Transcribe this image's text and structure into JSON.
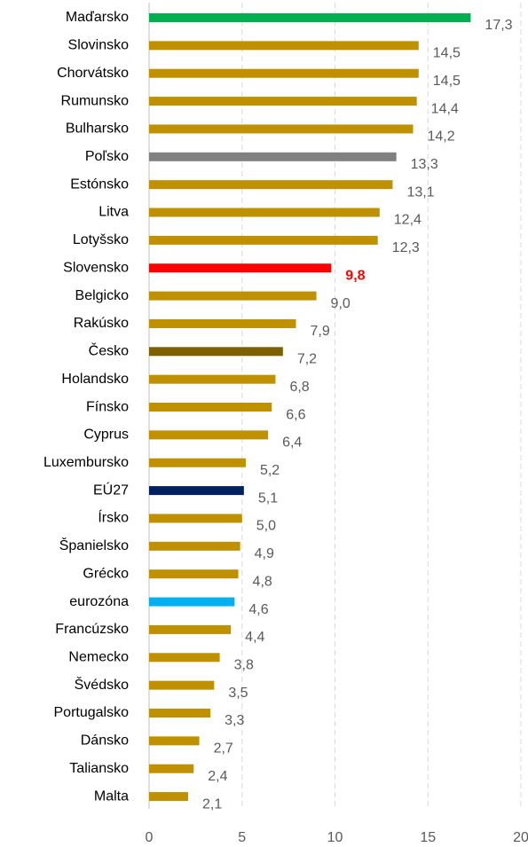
{
  "chart_data": {
    "type": "barh",
    "categories": [
      "Maďarsko",
      "Slovinsko",
      "Chorvátsko",
      "Rumunsko",
      "Bulharsko",
      "Poľsko",
      "Estónsko",
      "Litva",
      "Lotyšsko",
      "Slovensko",
      "Belgicko",
      "Rakúsko",
      "Česko",
      "Holandsko",
      "Fínsko",
      "Cyprus",
      "Luxembursko",
      "EÚ27",
      "Írsko",
      "Španielsko",
      "Grécko",
      "eurozóna",
      "Francúzsko",
      "Nemecko",
      "Švédsko",
      "Portugalsko",
      "Dánsko",
      "Taliansko",
      "Malta"
    ],
    "values": [
      17.3,
      14.5,
      14.5,
      14.4,
      14.2,
      13.3,
      13.1,
      12.4,
      12.3,
      9.8,
      9.0,
      7.9,
      7.2,
      6.8,
      6.6,
      6.4,
      5.2,
      5.1,
      5.0,
      4.9,
      4.8,
      4.6,
      4.4,
      3.8,
      3.5,
      3.3,
      2.7,
      2.4,
      2.1
    ],
    "value_labels": [
      "17,3",
      "14,5",
      "14,5",
      "14,4",
      "14,2",
      "13,3",
      "13,1",
      "12,4",
      "12,3",
      "9,8",
      "9,0",
      "7,9",
      "7,2",
      "6,8",
      "6,6",
      "6,4",
      "5,2",
      "5,1",
      "5,0",
      "4,9",
      "4,8",
      "4,6",
      "4,4",
      "3,8",
      "3,5",
      "3,3",
      "2,7",
      "2,4",
      "2,1"
    ],
    "colors": [
      "#00b050",
      "#bf9000",
      "#bf9000",
      "#bf9000",
      "#bf9000",
      "#808080",
      "#bf9000",
      "#bf9000",
      "#bf9000",
      "#ff0000",
      "#bf9000",
      "#bf9000",
      "#7f6000",
      "#bf9000",
      "#bf9000",
      "#bf9000",
      "#bf9000",
      "#002060",
      "#bf9000",
      "#bf9000",
      "#bf9000",
      "#00b0f0",
      "#bf9000",
      "#bf9000",
      "#bf9000",
      "#bf9000",
      "#bf9000",
      "#bf9000",
      "#bf9000"
    ],
    "highlight": {
      "category_index": 9,
      "color": "#ff0000"
    },
    "xlim": [
      0,
      20
    ],
    "xticks": [
      0,
      5,
      10,
      15,
      20
    ],
    "grid": true
  }
}
